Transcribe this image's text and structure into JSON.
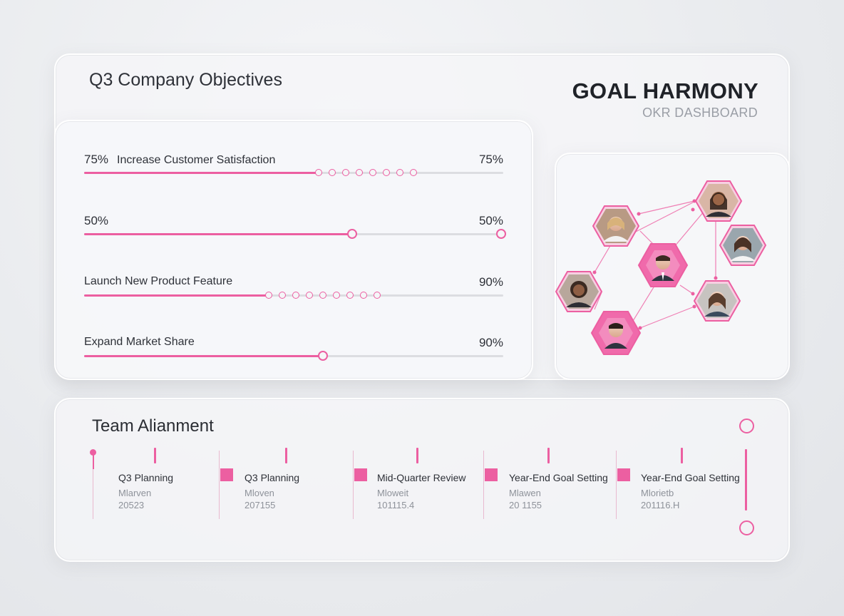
{
  "header": {
    "page_title": "Q3 Company Objectives",
    "brand_title": "GOAL HARMONY",
    "brand_subtitle": "OKR DASHBOARD"
  },
  "objectives": [
    {
      "prefix": "75%",
      "label": "Increase Customer Satisfaction",
      "percent_label": "75%",
      "fill_fraction": 0.56,
      "style": "dots",
      "dot_count": 8
    },
    {
      "prefix": "50%",
      "label": "",
      "percent_label": "50%",
      "fill_fraction": 0.64,
      "style": "knob-end"
    },
    {
      "prefix": "",
      "label": "Launch New Product Feature",
      "percent_label": "90%",
      "fill_fraction": 0.44,
      "style": "dots",
      "dot_count": 9
    },
    {
      "prefix": "",
      "label": "Expand Market Share",
      "percent_label": "90%",
      "fill_fraction": 0.57,
      "style": "knob"
    }
  ],
  "team_network": {
    "members": [
      "avatar-1",
      "avatar-2",
      "avatar-3",
      "avatar-4",
      "avatar-5",
      "avatar-6",
      "avatar-7"
    ]
  },
  "team_alignment": {
    "title": "Team Alianment",
    "milestones": [
      {
        "name": "Q3 Planning",
        "sub": "Mlarven",
        "date": "20523"
      },
      {
        "name": "Q3 Planning",
        "sub": "Mloven",
        "date": "207155"
      },
      {
        "name": "Mid-Quarter Review",
        "sub": "Mloweit",
        "date": "101115.4"
      },
      {
        "name": "Year-End Goal Setting",
        "sub": "Mlawen",
        "date": "20 1155"
      },
      {
        "name": "Year-End Goal Setting",
        "sub": "Mlorietb",
        "date": "201116.H"
      }
    ]
  },
  "colors": {
    "accent": "#ec5fa1",
    "track": "#dcdde1",
    "text": "#2e3138",
    "muted": "#9a9ea6"
  }
}
